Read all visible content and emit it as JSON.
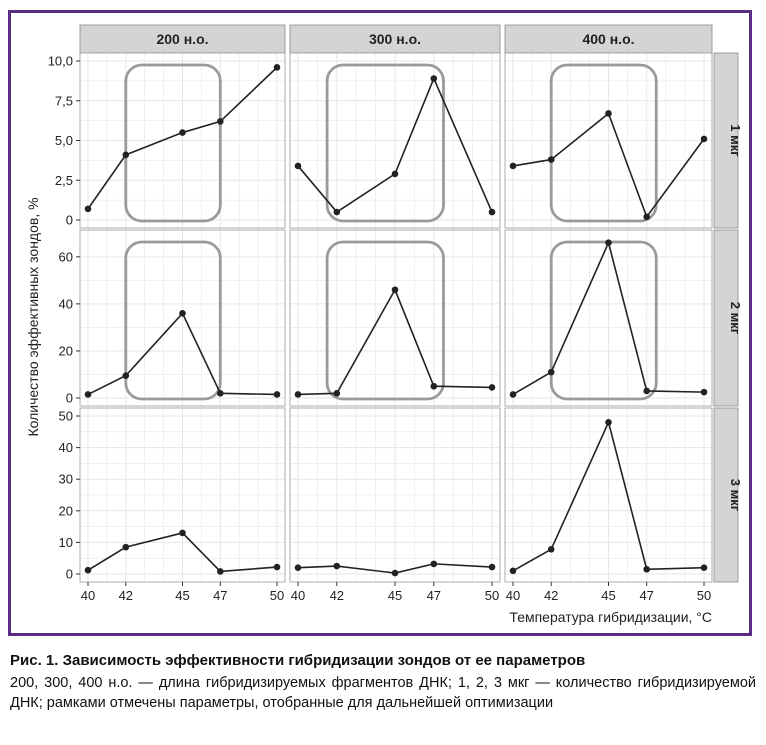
{
  "caption": {
    "title": "Рис. 1. Зависимость эффективности гибридизации зондов от ее параметров",
    "text": "200, 300, 400 н.о. — длина гибридизируемых фрагментов ДНК; 1, 2, 3 мкг — количество гибридизируемой ДНК; рамками отмечены параметры, отобранные для дальнейшей оптимизации"
  },
  "chart_data": {
    "type": "line",
    "xlabel": "Температура гибридизации, °C",
    "ylabel": "Количество эффективных зондов, %",
    "x": [
      40,
      42,
      45,
      47,
      50
    ],
    "x_tick_labels": [
      "40",
      "42",
      "45",
      "47",
      "50"
    ],
    "columns": [
      "200 н.о.",
      "300 н.о.",
      "400 н.о."
    ],
    "rows": [
      {
        "label": "1 мкг",
        "ylim": [
          0,
          10
        ],
        "y_ticks": [
          0,
          2.5,
          5,
          7.5,
          10
        ],
        "y_tick_labels": [
          "0",
          "2,5",
          "5,0",
          "7,5",
          "10,0"
        ]
      },
      {
        "label": "2 мкг",
        "ylim": [
          0,
          68
        ],
        "y_ticks": [
          0,
          20,
          40,
          60
        ],
        "y_tick_labels": [
          "0",
          "20",
          "40",
          "60"
        ]
      },
      {
        "label": "3 мкг",
        "ylim": [
          0,
          50
        ],
        "y_ticks": [
          0,
          10,
          20,
          30,
          40,
          50
        ],
        "y_tick_labels": [
          "0",
          "10",
          "20",
          "30",
          "40",
          "50"
        ]
      }
    ],
    "panels": [
      {
        "row": 0,
        "col": 0,
        "values": [
          0.7,
          4.1,
          5.5,
          6.2,
          9.6
        ],
        "box_x": [
          42,
          47
        ]
      },
      {
        "row": 0,
        "col": 1,
        "values": [
          3.4,
          0.5,
          2.9,
          8.9,
          0.5
        ],
        "box_x": [
          41.5,
          47.5
        ]
      },
      {
        "row": 0,
        "col": 2,
        "values": [
          3.4,
          3.8,
          6.7,
          0.2,
          5.1
        ],
        "box_x": [
          42,
          47.5
        ]
      },
      {
        "row": 1,
        "col": 0,
        "values": [
          1.5,
          9.5,
          36,
          2,
          1.5
        ],
        "box_x": [
          42,
          47
        ]
      },
      {
        "row": 1,
        "col": 1,
        "values": [
          1.5,
          2,
          46,
          5,
          4.5
        ],
        "box_x": [
          41.5,
          47.5
        ]
      },
      {
        "row": 1,
        "col": 2,
        "values": [
          1.5,
          11,
          66,
          3,
          2.5
        ],
        "box_x": [
          42,
          47.5
        ]
      },
      {
        "row": 2,
        "col": 0,
        "values": [
          1.2,
          8.5,
          13,
          0.8,
          2.2
        ],
        "box_x": null
      },
      {
        "row": 2,
        "col": 1,
        "values": [
          2,
          2.5,
          0.3,
          3.2,
          2.2
        ],
        "box_x": null
      },
      {
        "row": 2,
        "col": 2,
        "values": [
          1,
          7.8,
          48,
          1.5,
          2
        ],
        "box_x": null
      }
    ],
    "grid": true,
    "colors": {
      "line": "#222222",
      "strip": "#d4d4d4",
      "box": "#9a9a9a",
      "grid": "#e6e6e6",
      "frame": "#5b2d82"
    }
  }
}
